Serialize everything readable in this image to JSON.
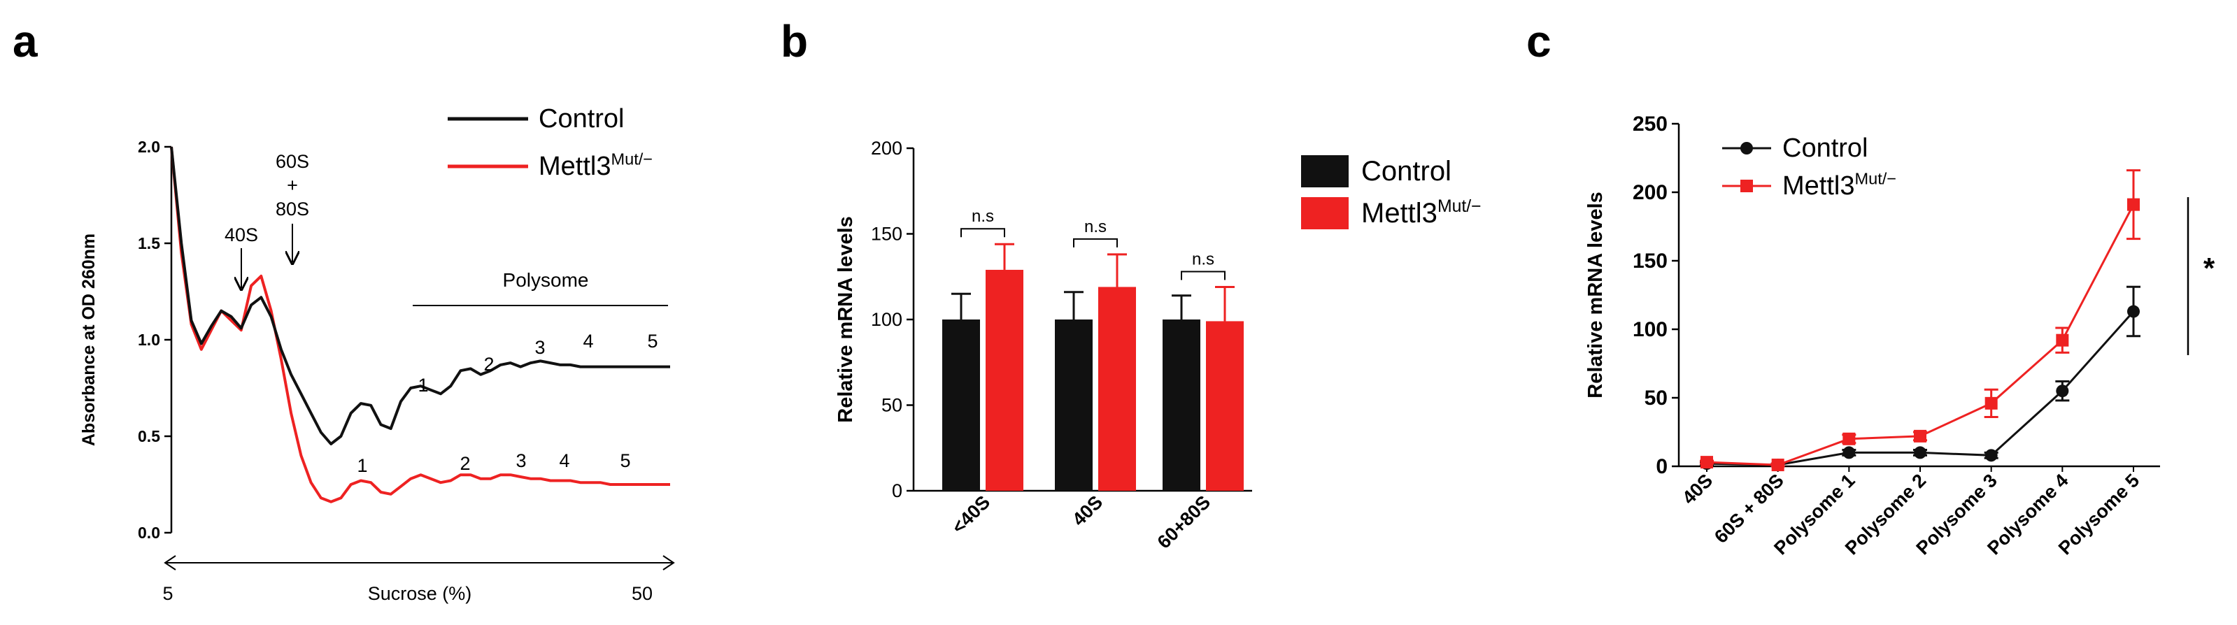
{
  "panels": {
    "a": {
      "letter": "a"
    },
    "b": {
      "letter": "b"
    },
    "c": {
      "letter": "c"
    }
  },
  "colors": {
    "control": "#111111",
    "mutant": "#ee2222",
    "axis": "#000000"
  },
  "chart_data": [
    {
      "id": "a",
      "type": "line",
      "title": "",
      "xlabel": "Sucrose (%)",
      "ylabel": "Absorbance at OD 260nm",
      "x_range_labels": [
        "5",
        "50"
      ],
      "ylim": [
        0.0,
        2.0
      ],
      "yticks": [
        "0.0",
        "0.5",
        "1.0",
        "1.5",
        "2.0"
      ],
      "legend": [
        {
          "name": "Control",
          "sup": ""
        },
        {
          "name": "Mettl3",
          "sup": "Mut/−"
        }
      ],
      "x": [
        0.0,
        0.02,
        0.04,
        0.06,
        0.08,
        0.1,
        0.12,
        0.14,
        0.16,
        0.18,
        0.2,
        0.22,
        0.24,
        0.26,
        0.28,
        0.3,
        0.32,
        0.34,
        0.36,
        0.38,
        0.4,
        0.42,
        0.44,
        0.46,
        0.48,
        0.5,
        0.52,
        0.54,
        0.56,
        0.58,
        0.6,
        0.62,
        0.64,
        0.66,
        0.68,
        0.7,
        0.72,
        0.74,
        0.76,
        0.78,
        0.8,
        0.82,
        0.84,
        0.86,
        0.88,
        0.9,
        0.92,
        0.94,
        0.96,
        0.98,
        1.0
      ],
      "series": [
        {
          "name": "Control",
          "values": [
            2.0,
            1.5,
            1.1,
            0.98,
            1.07,
            1.15,
            1.12,
            1.06,
            1.18,
            1.22,
            1.12,
            0.95,
            0.82,
            0.72,
            0.62,
            0.52,
            0.46,
            0.5,
            0.62,
            0.67,
            0.66,
            0.56,
            0.54,
            0.68,
            0.75,
            0.76,
            0.74,
            0.72,
            0.76,
            0.84,
            0.85,
            0.82,
            0.84,
            0.87,
            0.88,
            0.86,
            0.88,
            0.89,
            0.88,
            0.87,
            0.87,
            0.86,
            0.86,
            0.86,
            0.86,
            0.86,
            0.86,
            0.86,
            0.86,
            0.86,
            0.86
          ]
        },
        {
          "name": "Mettl3",
          "values": [
            2.0,
            1.45,
            1.08,
            0.95,
            1.05,
            1.15,
            1.1,
            1.05,
            1.28,
            1.33,
            1.15,
            0.9,
            0.62,
            0.4,
            0.26,
            0.18,
            0.16,
            0.18,
            0.25,
            0.27,
            0.26,
            0.21,
            0.2,
            0.24,
            0.28,
            0.3,
            0.28,
            0.26,
            0.27,
            0.3,
            0.3,
            0.28,
            0.28,
            0.3,
            0.3,
            0.29,
            0.28,
            0.28,
            0.27,
            0.27,
            0.27,
            0.26,
            0.26,
            0.26,
            0.25,
            0.25,
            0.25,
            0.25,
            0.25,
            0.25,
            0.25
          ]
        }
      ],
      "annotations": {
        "arrow_40s": "40S",
        "arrow_60s_lines": [
          "60S",
          "+",
          "80S"
        ],
        "polysome": "Polysome",
        "control_peak_numbers": [
          "1",
          "2",
          "3",
          "4",
          "5"
        ],
        "mutant_peak_numbers": [
          "1",
          "2",
          "3",
          "4",
          "5"
        ]
      }
    },
    {
      "id": "b",
      "type": "bar",
      "title": "",
      "xlabel": "",
      "ylabel": "Relative mRNA levels",
      "categories": [
        "<40S",
        "40S",
        "60+80S"
      ],
      "ylim": [
        0,
        200
      ],
      "yticks": [
        "0",
        "50",
        "100",
        "150",
        "200"
      ],
      "series": [
        {
          "name": "Control",
          "sup": "",
          "values": [
            100,
            100,
            100
          ],
          "errors": [
            15,
            16,
            14
          ]
        },
        {
          "name": "Mettl3",
          "sup": "Mut/−",
          "values": [
            129,
            119,
            99
          ],
          "errors": [
            15,
            19,
            20
          ]
        }
      ],
      "significance": [
        "n.s",
        "n.s",
        "n.s"
      ]
    },
    {
      "id": "c",
      "type": "line",
      "title": "",
      "xlabel": "",
      "ylabel": "Relative mRNA levels",
      "categories": [
        "40S",
        "60S + 80S",
        "Polysome 1",
        "Polysome 2",
        "Polysome 3",
        "Polysome 4",
        "Polysome 5"
      ],
      "ylim": [
        0,
        250
      ],
      "yticks": [
        "0",
        "50",
        "100",
        "150",
        "200",
        "250"
      ],
      "series": [
        {
          "name": "Control",
          "sup": "",
          "marker": "circle",
          "values": [
            2,
            1,
            10,
            10,
            8,
            55,
            113
          ],
          "errors": [
            1,
            1,
            2,
            2,
            2,
            7,
            18
          ]
        },
        {
          "name": "Mettl3",
          "sup": "Mut/−",
          "marker": "square",
          "values": [
            3,
            1,
            20,
            22,
            46,
            92,
            191
          ],
          "errors": [
            1,
            1,
            3,
            3,
            10,
            9,
            25
          ]
        }
      ],
      "significance": "*"
    }
  ]
}
